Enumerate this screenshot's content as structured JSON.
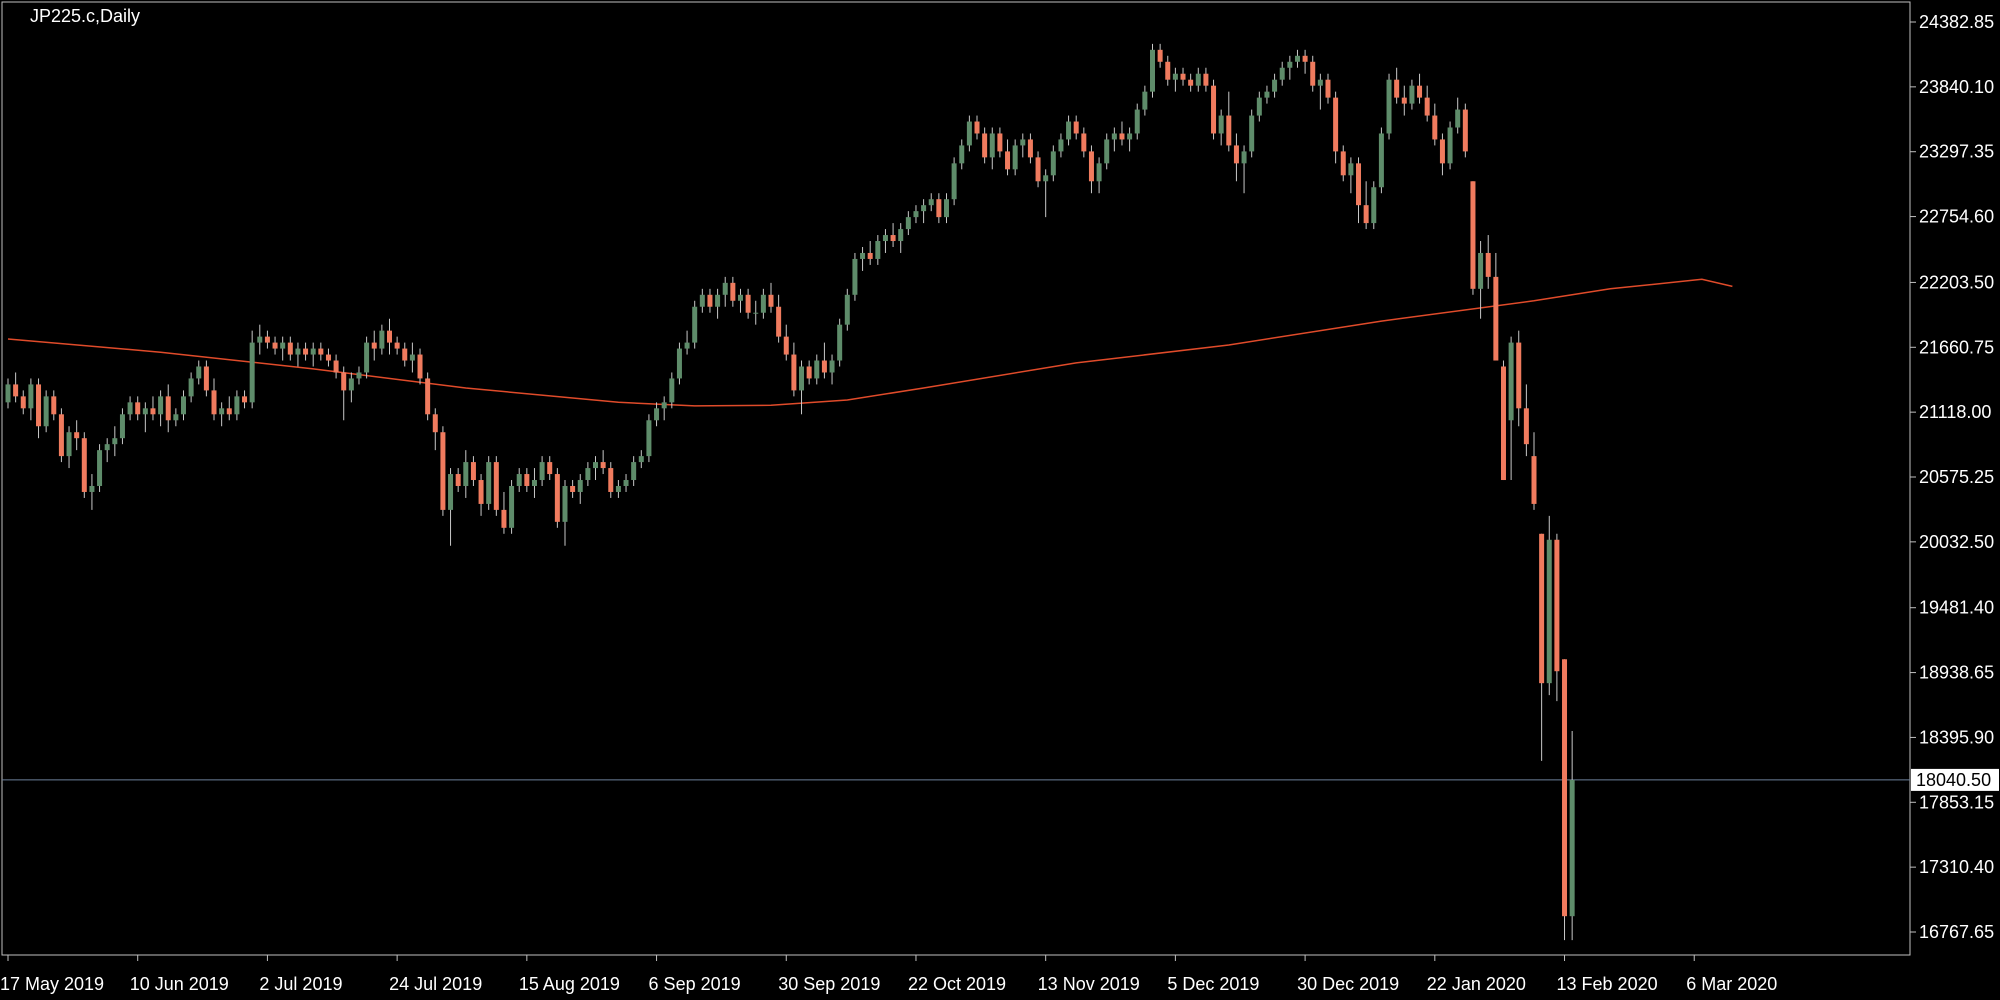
{
  "chart_title": "JP225.c,Daily",
  "colors": {
    "background": "#000000",
    "axis": "#c0c0c0",
    "bull": "#5e8c6a",
    "bear": "#f07b5e",
    "wick": "#c8c8c8",
    "ma": "#e04b2a",
    "price_line": "#6c7f9a",
    "price_tag_bg": "#ffffff"
  },
  "chart_data": {
    "type": "candlestick",
    "symbol": "JP225.c",
    "timeframe": "Daily",
    "ylim": [
      16500,
      24650
    ],
    "y_ticks": [
      "24382.85",
      "23840.10",
      "23297.35",
      "22754.60",
      "22203.50",
      "21660.75",
      "21118.00",
      "20575.25",
      "20032.50",
      "19481.40",
      "18938.65",
      "18395.90",
      "17853.15",
      "17310.40",
      "16767.65"
    ],
    "current_price": "18040.50",
    "x_labels": [
      "17 May 2019",
      "10 Jun 2019",
      "2 Jul 2019",
      "24 Jul 2019",
      "15 Aug 2019",
      "6 Sep 2019",
      "30 Sep 2019",
      "22 Oct 2019",
      "13 Nov 2019",
      "5 Dec 2019",
      "30 Dec 2019",
      "22 Jan 2020",
      "13 Feb 2020",
      "6 Mar 2020"
    ],
    "x_label_index": [
      0,
      17,
      34,
      51,
      68,
      85,
      102,
      119,
      136,
      153,
      170,
      187,
      204,
      221
    ],
    "candles": [
      [
        21200,
        21400,
        21150,
        21350
      ],
      [
        21350,
        21450,
        21200,
        21250
      ],
      [
        21250,
        21300,
        21100,
        21150
      ],
      [
        21150,
        21400,
        21050,
        21350
      ],
      [
        21350,
        21400,
        20900,
        21000
      ],
      [
        21000,
        21300,
        20950,
        21250
      ],
      [
        21250,
        21300,
        21050,
        21100
      ],
      [
        21100,
        21150,
        20700,
        20750
      ],
      [
        20750,
        21000,
        20650,
        20950
      ],
      [
        20950,
        21050,
        20800,
        20900
      ],
      [
        20900,
        20950,
        20400,
        20450
      ],
      [
        20450,
        20600,
        20300,
        20500
      ],
      [
        20500,
        20850,
        20450,
        20800
      ],
      [
        20800,
        20900,
        20700,
        20850
      ],
      [
        20850,
        21000,
        20750,
        20900
      ],
      [
        20900,
        21150,
        20850,
        21100
      ],
      [
        21100,
        21250,
        21050,
        21200
      ],
      [
        21200,
        21250,
        21050,
        21100
      ],
      [
        21100,
        21200,
        20950,
        21150
      ],
      [
        21150,
        21250,
        21050,
        21100
      ],
      [
        21100,
        21300,
        21000,
        21250
      ],
      [
        21250,
        21350,
        20950,
        21050
      ],
      [
        21050,
        21150,
        21000,
        21100
      ],
      [
        21100,
        21300,
        21050,
        21250
      ],
      [
        21250,
        21450,
        21200,
        21400
      ],
      [
        21400,
        21550,
        21350,
        21500
      ],
      [
        21500,
        21550,
        21250,
        21300
      ],
      [
        21300,
        21400,
        21050,
        21100
      ],
      [
        21100,
        21200,
        21000,
        21150
      ],
      [
        21150,
        21250,
        21050,
        21100
      ],
      [
        21100,
        21300,
        21050,
        21250
      ],
      [
        21250,
        21300,
        21150,
        21200
      ],
      [
        21200,
        21800,
        21150,
        21700
      ],
      [
        21700,
        21850,
        21600,
        21750
      ],
      [
        21750,
        21800,
        21650,
        21700
      ],
      [
        21700,
        21750,
        21600,
        21650
      ],
      [
        21650,
        21750,
        21550,
        21700
      ],
      [
        21700,
        21750,
        21550,
        21600
      ],
      [
        21600,
        21700,
        21500,
        21650
      ],
      [
        21650,
        21700,
        21550,
        21600
      ],
      [
        21600,
        21700,
        21500,
        21650
      ],
      [
        21650,
        21700,
        21550,
        21600
      ],
      [
        21600,
        21650,
        21500,
        21550
      ],
      [
        21550,
        21600,
        21400,
        21450
      ],
      [
        21450,
        21500,
        21050,
        21300
      ],
      [
        21300,
        21450,
        21200,
        21400
      ],
      [
        21400,
        21500,
        21350,
        21450
      ],
      [
        21450,
        21750,
        21400,
        21700
      ],
      [
        21700,
        21800,
        21550,
        21650
      ],
      [
        21650,
        21850,
        21600,
        21800
      ],
      [
        21800,
        21900,
        21600,
        21700
      ],
      [
        21700,
        21750,
        21600,
        21650
      ],
      [
        21650,
        21700,
        21500,
        21550
      ],
      [
        21550,
        21700,
        21450,
        21600
      ],
      [
        21600,
        21650,
        21350,
        21400
      ],
      [
        21400,
        21450,
        21050,
        21100
      ],
      [
        21100,
        21150,
        20800,
        20950
      ],
      [
        20950,
        21000,
        20250,
        20300
      ],
      [
        20300,
        20650,
        20000,
        20600
      ],
      [
        20600,
        20650,
        20450,
        20500
      ],
      [
        20500,
        20800,
        20400,
        20700
      ],
      [
        20700,
        20750,
        20500,
        20550
      ],
      [
        20550,
        20600,
        20250,
        20350
      ],
      [
        20350,
        20750,
        20300,
        20700
      ],
      [
        20700,
        20750,
        20250,
        20300
      ],
      [
        20300,
        20450,
        20100,
        20150
      ],
      [
        20150,
        20550,
        20100,
        20500
      ],
      [
        20500,
        20650,
        20450,
        20600
      ],
      [
        20600,
        20650,
        20450,
        20500
      ],
      [
        20500,
        20650,
        20400,
        20550
      ],
      [
        20550,
        20750,
        20500,
        20700
      ],
      [
        20700,
        20750,
        20550,
        20600
      ],
      [
        20600,
        20650,
        20150,
        20200
      ],
      [
        20200,
        20550,
        20000,
        20500
      ],
      [
        20500,
        20550,
        20400,
        20450
      ],
      [
        20450,
        20600,
        20350,
        20550
      ],
      [
        20550,
        20700,
        20500,
        20650
      ],
      [
        20650,
        20750,
        20550,
        20700
      ],
      [
        20700,
        20800,
        20600,
        20650
      ],
      [
        20650,
        20700,
        20400,
        20450
      ],
      [
        20450,
        20550,
        20400,
        20500
      ],
      [
        20500,
        20600,
        20450,
        20550
      ],
      [
        20550,
        20750,
        20500,
        20700
      ],
      [
        20700,
        20800,
        20650,
        20750
      ],
      [
        20750,
        21100,
        20700,
        21050
      ],
      [
        21050,
        21200,
        21000,
        21150
      ],
      [
        21150,
        21250,
        21050,
        21200
      ],
      [
        21200,
        21450,
        21150,
        21400
      ],
      [
        21400,
        21700,
        21350,
        21650
      ],
      [
        21650,
        21800,
        21600,
        21700
      ],
      [
        21700,
        22050,
        21650,
        22000
      ],
      [
        22000,
        22150,
        21950,
        22100
      ],
      [
        22100,
        22150,
        21950,
        22000
      ],
      [
        22000,
        22150,
        21900,
        22100
      ],
      [
        22100,
        22250,
        22000,
        22200
      ],
      [
        22200,
        22250,
        22000,
        22050
      ],
      [
        22050,
        22150,
        21950,
        22100
      ],
      [
        22100,
        22150,
        21900,
        21950
      ],
      [
        21950,
        22050,
        21850,
        21950
      ],
      [
        21950,
        22150,
        21900,
        22100
      ],
      [
        22100,
        22200,
        21950,
        22000
      ],
      [
        22000,
        22100,
        21700,
        21750
      ],
      [
        21750,
        21850,
        21550,
        21600
      ],
      [
        21600,
        21700,
        21250,
        21300
      ],
      [
        21300,
        21550,
        21100,
        21500
      ],
      [
        21500,
        21550,
        21350,
        21400
      ],
      [
        21400,
        21600,
        21350,
        21550
      ],
      [
        21550,
        21700,
        21400,
        21450
      ],
      [
        21450,
        21600,
        21350,
        21550
      ],
      [
        21550,
        21900,
        21500,
        21850
      ],
      [
        21850,
        22150,
        21800,
        22100
      ],
      [
        22100,
        22450,
        22050,
        22400
      ],
      [
        22400,
        22500,
        22300,
        22450
      ],
      [
        22450,
        22550,
        22350,
        22400
      ],
      [
        22400,
        22600,
        22350,
        22550
      ],
      [
        22550,
        22650,
        22450,
        22600
      ],
      [
        22600,
        22700,
        22500,
        22550
      ],
      [
        22550,
        22700,
        22450,
        22650
      ],
      [
        22650,
        22800,
        22600,
        22750
      ],
      [
        22750,
        22850,
        22700,
        22800
      ],
      [
        22800,
        22900,
        22700,
        22850
      ],
      [
        22850,
        22950,
        22800,
        22900
      ],
      [
        22900,
        22950,
        22700,
        22750
      ],
      [
        22750,
        22950,
        22700,
        22900
      ],
      [
        22900,
        23250,
        22850,
        23200
      ],
      [
        23200,
        23400,
        23150,
        23350
      ],
      [
        23350,
        23600,
        23300,
        23550
      ],
      [
        23550,
        23600,
        23400,
        23450
      ],
      [
        23450,
        23500,
        23200,
        23250
      ],
      [
        23250,
        23500,
        23150,
        23450
      ],
      [
        23450,
        23500,
        23250,
        23300
      ],
      [
        23300,
        23400,
        23100,
        23150
      ],
      [
        23150,
        23400,
        23100,
        23350
      ],
      [
        23350,
        23450,
        23250,
        23400
      ],
      [
        23400,
        23450,
        23200,
        23250
      ],
      [
        23250,
        23300,
        23000,
        23050
      ],
      [
        23050,
        23150,
        22750,
        23100
      ],
      [
        23100,
        23350,
        23050,
        23300
      ],
      [
        23300,
        23450,
        23250,
        23400
      ],
      [
        23400,
        23600,
        23350,
        23550
      ],
      [
        23550,
        23600,
        23400,
        23450
      ],
      [
        23450,
        23500,
        23250,
        23300
      ],
      [
        23300,
        23350,
        22950,
        23050
      ],
      [
        23050,
        23250,
        22950,
        23200
      ],
      [
        23200,
        23450,
        23150,
        23400
      ],
      [
        23400,
        23500,
        23300,
        23450
      ],
      [
        23450,
        23550,
        23350,
        23400
      ],
      [
        23400,
        23500,
        23300,
        23450
      ],
      [
        23450,
        23700,
        23400,
        23650
      ],
      [
        23650,
        23850,
        23600,
        23800
      ],
      [
        23800,
        24200,
        23750,
        24150
      ],
      [
        24150,
        24200,
        24000,
        24050
      ],
      [
        24050,
        24100,
        23850,
        23900
      ],
      [
        23900,
        24000,
        23800,
        23950
      ],
      [
        23950,
        24000,
        23850,
        23900
      ],
      [
        23900,
        23950,
        23800,
        23850
      ],
      [
        23850,
        24000,
        23800,
        23950
      ],
      [
        23950,
        24000,
        23800,
        23850
      ],
      [
        23850,
        23900,
        23400,
        23450
      ],
      [
        23450,
        23650,
        23350,
        23600
      ],
      [
        23600,
        23800,
        23300,
        23350
      ],
      [
        23350,
        23450,
        23050,
        23200
      ],
      [
        23200,
        23350,
        22950,
        23300
      ],
      [
        23300,
        23650,
        23250,
        23600
      ],
      [
        23600,
        23800,
        23550,
        23750
      ],
      [
        23750,
        23850,
        23700,
        23800
      ],
      [
        23800,
        23950,
        23750,
        23900
      ],
      [
        23900,
        24050,
        23850,
        24000
      ],
      [
        24000,
        24100,
        23900,
        24050
      ],
      [
        24050,
        24150,
        24000,
        24100
      ],
      [
        24100,
        24150,
        23950,
        24050
      ],
      [
        24050,
        24100,
        23800,
        23850
      ],
      [
        23850,
        23950,
        23650,
        23900
      ],
      [
        23900,
        23950,
        23700,
        23750
      ],
      [
        23750,
        23800,
        23200,
        23300
      ],
      [
        23300,
        23350,
        23050,
        23100
      ],
      [
        23100,
        23250,
        22950,
        23200
      ],
      [
        23200,
        23250,
        22700,
        22850
      ],
      [
        22850,
        23050,
        22650,
        22700
      ],
      [
        22700,
        23050,
        22650,
        23000
      ],
      [
        23000,
        23500,
        22950,
        23450
      ],
      [
        23450,
        23950,
        23400,
        23900
      ],
      [
        23900,
        24000,
        23700,
        23750
      ],
      [
        23750,
        23850,
        23600,
        23700
      ],
      [
        23700,
        23900,
        23650,
        23850
      ],
      [
        23850,
        23950,
        23700,
        23750
      ],
      [
        23750,
        23850,
        23550,
        23600
      ],
      [
        23600,
        23700,
        23350,
        23400
      ],
      [
        23400,
        23450,
        23100,
        23200
      ],
      [
        23200,
        23550,
        23150,
        23500
      ],
      [
        23500,
        23750,
        23450,
        23650
      ],
      [
        23650,
        23700,
        23250,
        23300
      ],
      [
        23050,
        23050,
        22100,
        22150
      ],
      [
        22150,
        22550,
        21900,
        22450
      ],
      [
        22450,
        22600,
        22150,
        22250
      ],
      [
        22250,
        22450,
        21550,
        21550
      ],
      [
        21500,
        21550,
        20550,
        20550
      ],
      [
        21050,
        21750,
        20550,
        21700
      ],
      [
        21700,
        21800,
        21000,
        21150
      ],
      [
        21150,
        21350,
        20750,
        20850
      ],
      [
        20750,
        20950,
        20300,
        20350
      ],
      [
        20100,
        20100,
        18200,
        18850
      ],
      [
        18850,
        20250,
        18750,
        20050
      ],
      [
        20050,
        20100,
        18700,
        18950
      ],
      [
        19050,
        19050,
        16700,
        16900
      ],
      [
        16900,
        18450,
        16700,
        18040
      ]
    ],
    "ma_value_by_candle": [
      [
        0,
        21730
      ],
      [
        20,
        21620
      ],
      [
        40,
        21480
      ],
      [
        60,
        21320
      ],
      [
        80,
        21200
      ],
      [
        90,
        21170
      ],
      [
        100,
        21175
      ],
      [
        110,
        21220
      ],
      [
        120,
        21320
      ],
      [
        140,
        21530
      ],
      [
        160,
        21680
      ],
      [
        180,
        21880
      ],
      [
        200,
        22050
      ],
      [
        210,
        22150
      ],
      [
        222,
        22230
      ],
      [
        226,
        22170
      ]
    ]
  }
}
